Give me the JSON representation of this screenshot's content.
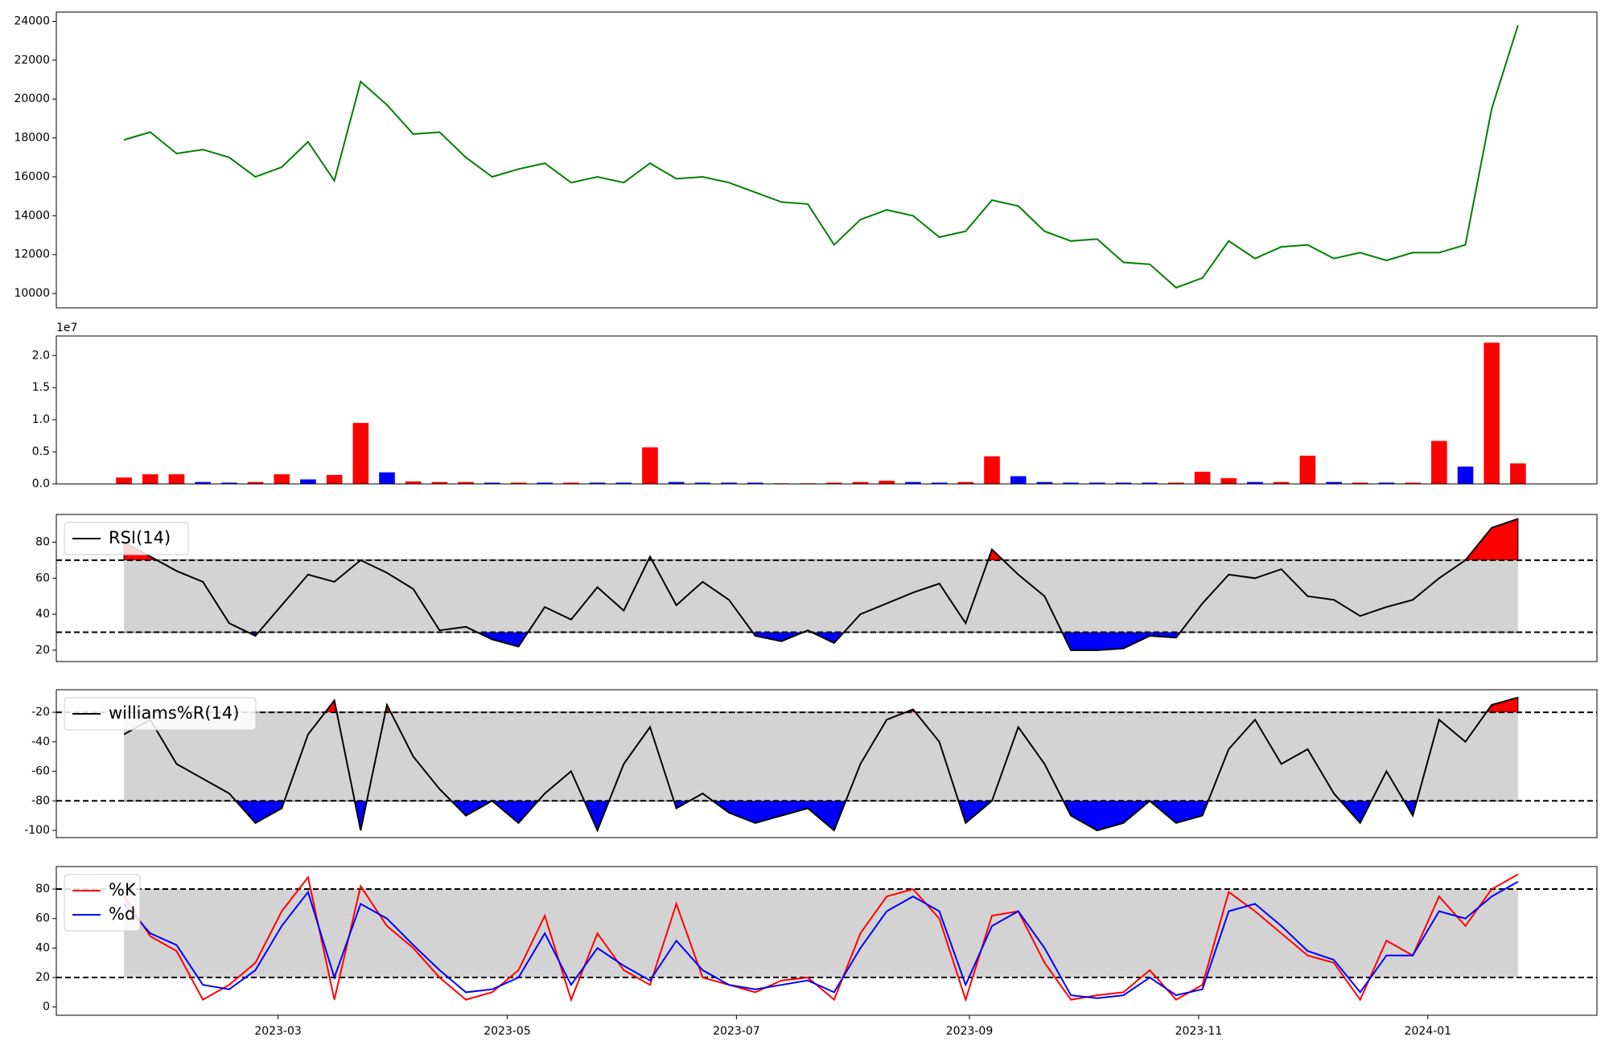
{
  "chart_data": [
    {
      "type": "line",
      "x": [
        "2023-01-19",
        "2023-01-26",
        "2023-02-02",
        "2023-02-09",
        "2023-02-16",
        "2023-02-23",
        "2023-03-02",
        "2023-03-09",
        "2023-03-16",
        "2023-03-23",
        "2023-03-30",
        "2023-04-06",
        "2023-04-13",
        "2023-04-20",
        "2023-04-27",
        "2023-05-04",
        "2023-05-11",
        "2023-05-18",
        "2023-05-25",
        "2023-06-01",
        "2023-06-08",
        "2023-06-15",
        "2023-06-22",
        "2023-06-29",
        "2023-07-06",
        "2023-07-13",
        "2023-07-20",
        "2023-07-27",
        "2023-08-03",
        "2023-08-10",
        "2023-08-17",
        "2023-08-24",
        "2023-08-31",
        "2023-09-07",
        "2023-09-14",
        "2023-09-21",
        "2023-09-28",
        "2023-10-05",
        "2023-10-12",
        "2023-10-19",
        "2023-10-26",
        "2023-11-02",
        "2023-11-09",
        "2023-11-16",
        "2023-11-23",
        "2023-11-30",
        "2023-12-07",
        "2023-12-14",
        "2023-12-21",
        "2023-12-28",
        "2024-01-04",
        "2024-01-11",
        "2024-01-18",
        "2024-01-25"
      ],
      "series": [
        {
          "color": "#008000",
          "values": [
            17900,
            18300,
            17200,
            17400,
            17000,
            16000,
            16500,
            17800,
            15800,
            20900,
            19700,
            18200,
            18300,
            17000,
            16000,
            16400,
            16700,
            15700,
            16000,
            15700,
            16700,
            15900,
            16000,
            15700,
            15200,
            14700,
            14600,
            12500,
            13800,
            14300,
            14000,
            12900,
            13200,
            14800,
            14500,
            13200,
            12700,
            12800,
            11600,
            11500,
            10300,
            10800,
            12700,
            11800,
            12400,
            12500,
            11800,
            12100,
            11700,
            12100,
            12100,
            12500,
            19500,
            23800
          ]
        }
      ],
      "xlim": [
        "2023-01-01",
        "2024-02-15"
      ],
      "ylim": [
        9260,
        24475
      ],
      "yticks": [
        10000,
        12000,
        14000,
        16000,
        18000,
        20000,
        22000,
        24000
      ]
    },
    {
      "type": "bar",
      "x": [
        "2023-01-19",
        "2023-01-26",
        "2023-02-02",
        "2023-02-09",
        "2023-02-16",
        "2023-02-23",
        "2023-03-02",
        "2023-03-09",
        "2023-03-16",
        "2023-03-23",
        "2023-03-30",
        "2023-04-06",
        "2023-04-13",
        "2023-04-20",
        "2023-04-27",
        "2023-05-04",
        "2023-05-11",
        "2023-05-18",
        "2023-05-25",
        "2023-06-01",
        "2023-06-08",
        "2023-06-15",
        "2023-06-22",
        "2023-06-29",
        "2023-07-06",
        "2023-07-13",
        "2023-07-20",
        "2023-07-27",
        "2023-08-03",
        "2023-08-10",
        "2023-08-17",
        "2023-08-24",
        "2023-08-31",
        "2023-09-07",
        "2023-09-14",
        "2023-09-21",
        "2023-09-28",
        "2023-10-05",
        "2023-10-12",
        "2023-10-19",
        "2023-10-26",
        "2023-11-02",
        "2023-11-09",
        "2023-11-16",
        "2023-11-23",
        "2023-11-30",
        "2023-12-07",
        "2023-12-14",
        "2023-12-21",
        "2023-12-28",
        "2024-01-04",
        "2024-01-11",
        "2024-01-18",
        "2024-01-25"
      ],
      "values": [
        1000000,
        1500000,
        1500000,
        300000,
        200000,
        300000,
        1500000,
        700000,
        1400000,
        9500000,
        1800000,
        400000,
        300000,
        300000,
        200000,
        200000,
        200000,
        200000,
        200000,
        200000,
        5700000,
        300000,
        200000,
        200000,
        200000,
        100000,
        100000,
        200000,
        300000,
        500000,
        300000,
        200000,
        300000,
        4300000,
        1200000,
        300000,
        200000,
        200000,
        200000,
        200000,
        200000,
        1900000,
        900000,
        300000,
        300000,
        4400000,
        300000,
        200000,
        200000,
        200000,
        6700000,
        2700000,
        22000000,
        3200000
      ],
      "colors": [
        "red",
        "red",
        "red",
        "blue",
        "blue",
        "red",
        "red",
        "blue",
        "red",
        "red",
        "blue",
        "red",
        "red",
        "red",
        "blue",
        "red",
        "blue",
        "red",
        "blue",
        "blue",
        "red",
        "blue",
        "blue",
        "blue",
        "blue",
        "red",
        "red",
        "red",
        "red",
        "red",
        "blue",
        "blue",
        "red",
        "red",
        "blue",
        "blue",
        "blue",
        "blue",
        "blue",
        "blue",
        "red",
        "red",
        "red",
        "blue",
        "red",
        "red",
        "blue",
        "red",
        "blue",
        "red",
        "red",
        "blue",
        "red",
        "red"
      ],
      "offset_label": "1e7",
      "xlim": [
        "2023-01-01",
        "2024-02-15"
      ],
      "ylim": [
        0,
        23040000
      ],
      "yticks": [
        {
          "value": 0,
          "label": "0.0"
        },
        {
          "value": 5000000,
          "label": "0.5"
        },
        {
          "value": 10000000,
          "label": "1.0"
        },
        {
          "value": 15000000,
          "label": "1.5"
        },
        {
          "value": 20000000,
          "label": "2.0"
        }
      ]
    },
    {
      "type": "oscillator",
      "x": [
        "2023-01-19",
        "2023-01-26",
        "2023-02-02",
        "2023-02-09",
        "2023-02-16",
        "2023-02-23",
        "2023-03-02",
        "2023-03-09",
        "2023-03-16",
        "2023-03-23",
        "2023-03-30",
        "2023-04-06",
        "2023-04-13",
        "2023-04-20",
        "2023-04-27",
        "2023-05-04",
        "2023-05-11",
        "2023-05-18",
        "2023-05-25",
        "2023-06-01",
        "2023-06-08",
        "2023-06-15",
        "2023-06-22",
        "2023-06-29",
        "2023-07-06",
        "2023-07-13",
        "2023-07-20",
        "2023-07-27",
        "2023-08-03",
        "2023-08-10",
        "2023-08-17",
        "2023-08-24",
        "2023-08-31",
        "2023-09-07",
        "2023-09-14",
        "2023-09-21",
        "2023-09-28",
        "2023-10-05",
        "2023-10-12",
        "2023-10-19",
        "2023-10-26",
        "2023-11-02",
        "2023-11-09",
        "2023-11-16",
        "2023-11-23",
        "2023-11-30",
        "2023-12-07",
        "2023-12-14",
        "2023-12-21",
        "2023-12-28",
        "2024-01-04",
        "2024-01-11",
        "2024-01-18",
        "2024-01-25"
      ],
      "series": [
        {
          "name": "RSI(14)",
          "color": "#000000",
          "values": [
            80,
            72,
            64,
            58,
            35,
            28,
            45,
            62,
            58,
            70,
            63,
            54,
            31,
            33,
            26,
            22,
            44,
            37,
            55,
            42,
            72,
            45,
            58,
            48,
            28,
            25,
            31,
            24,
            40,
            46,
            52,
            57,
            35,
            76,
            62,
            50,
            20,
            20,
            21,
            28,
            27,
            46,
            62,
            60,
            65,
            50,
            48,
            39,
            44,
            48,
            60,
            70,
            88,
            93
          ]
        }
      ],
      "upper": 70,
      "lower": 30,
      "fill_extremes": true,
      "over_color": "red",
      "under_color": "blue",
      "band_color": "#d3d3d3",
      "xlim": [
        "2023-01-01",
        "2024-02-15"
      ],
      "ylim": [
        13.7,
        95.4
      ],
      "yticks": [
        20,
        40,
        60,
        80
      ]
    },
    {
      "type": "oscillator",
      "x": [
        "2023-01-19",
        "2023-01-26",
        "2023-02-02",
        "2023-02-09",
        "2023-02-16",
        "2023-02-23",
        "2023-03-02",
        "2023-03-09",
        "2023-03-16",
        "2023-03-23",
        "2023-03-30",
        "2023-04-06",
        "2023-04-13",
        "2023-04-20",
        "2023-04-27",
        "2023-05-04",
        "2023-05-11",
        "2023-05-18",
        "2023-05-25",
        "2023-06-01",
        "2023-06-08",
        "2023-06-15",
        "2023-06-22",
        "2023-06-29",
        "2023-07-06",
        "2023-07-13",
        "2023-07-20",
        "2023-07-27",
        "2023-08-03",
        "2023-08-10",
        "2023-08-17",
        "2023-08-24",
        "2023-08-31",
        "2023-09-07",
        "2023-09-14",
        "2023-09-21",
        "2023-09-28",
        "2023-10-05",
        "2023-10-12",
        "2023-10-19",
        "2023-10-26",
        "2023-11-02",
        "2023-11-09",
        "2023-11-16",
        "2023-11-23",
        "2023-11-30",
        "2023-12-07",
        "2023-12-14",
        "2023-12-21",
        "2023-12-28",
        "2024-01-04",
        "2024-01-11",
        "2024-01-18",
        "2024-01-25"
      ],
      "series": [
        {
          "name": "williams%R(14)",
          "color": "#000000",
          "values": [
            -35,
            -25,
            -55,
            -65,
            -75,
            -95,
            -85,
            -35,
            -12,
            -100,
            -15,
            -50,
            -72,
            -90,
            -80,
            -95,
            -75,
            -60,
            -100,
            -55,
            -30,
            -85,
            -75,
            -88,
            -95,
            -90,
            -85,
            -100,
            -55,
            -25,
            -18,
            -40,
            -95,
            -80,
            -30,
            -55,
            -90,
            -100,
            -95,
            -80,
            -95,
            -90,
            -45,
            -25,
            -55,
            -45,
            -75,
            -95,
            -60,
            -90,
            -25,
            -40,
            -15,
            -10
          ]
        }
      ],
      "upper": -20,
      "lower": -80,
      "fill_extremes": true,
      "over_color": "red",
      "under_color": "blue",
      "band_color": "#d3d3d3",
      "xlim": [
        "2023-01-01",
        "2024-02-15"
      ],
      "ylim": [
        -104.9,
        -4.7
      ],
      "yticks": [
        -100,
        -80,
        -60,
        -40,
        -20
      ]
    },
    {
      "type": "oscillator",
      "x": [
        "2023-01-19",
        "2023-01-26",
        "2023-02-02",
        "2023-02-09",
        "2023-02-16",
        "2023-02-23",
        "2023-03-02",
        "2023-03-09",
        "2023-03-16",
        "2023-03-23",
        "2023-03-30",
        "2023-04-06",
        "2023-04-13",
        "2023-04-20",
        "2023-04-27",
        "2023-05-04",
        "2023-05-11",
        "2023-05-18",
        "2023-05-25",
        "2023-06-01",
        "2023-06-08",
        "2023-06-15",
        "2023-06-22",
        "2023-06-29",
        "2023-07-06",
        "2023-07-13",
        "2023-07-20",
        "2023-07-27",
        "2023-08-03",
        "2023-08-10",
        "2023-08-17",
        "2023-08-24",
        "2023-08-31",
        "2023-09-07",
        "2023-09-14",
        "2023-09-21",
        "2023-09-28",
        "2023-10-05",
        "2023-10-12",
        "2023-10-19",
        "2023-10-26",
        "2023-11-02",
        "2023-11-09",
        "2023-11-16",
        "2023-11-23",
        "2023-11-30",
        "2023-12-07",
        "2023-12-14",
        "2023-12-21",
        "2023-12-28",
        "2024-01-04",
        "2024-01-11",
        "2024-01-18",
        "2024-01-25"
      ],
      "series": [
        {
          "name": "%K",
          "color": "red",
          "values": [
            75,
            48,
            38,
            5,
            15,
            30,
            65,
            88,
            5,
            82,
            55,
            40,
            20,
            5,
            10,
            25,
            62,
            5,
            50,
            25,
            15,
            70,
            20,
            15,
            10,
            18,
            20,
            5,
            50,
            75,
            80,
            60,
            5,
            62,
            65,
            30,
            5,
            8,
            10,
            25,
            5,
            15,
            78,
            65,
            50,
            35,
            30,
            5,
            45,
            35,
            75,
            55,
            80,
            90
          ]
        },
        {
          "name": "%d",
          "color": "blue",
          "values": [
            70,
            50,
            42,
            15,
            12,
            25,
            55,
            78,
            20,
            70,
            60,
            42,
            25,
            10,
            12,
            20,
            50,
            15,
            40,
            28,
            18,
            45,
            25,
            15,
            12,
            15,
            18,
            10,
            40,
            65,
            75,
            65,
            15,
            55,
            65,
            40,
            8,
            6,
            8,
            20,
            8,
            12,
            65,
            70,
            55,
            38,
            32,
            10,
            35,
            35,
            65,
            60,
            75,
            85
          ]
        }
      ],
      "upper": 80,
      "lower": 20,
      "fill_extremes": false,
      "band_color": "#d3d3d3",
      "xlim": [
        "2023-01-01",
        "2024-02-15"
      ],
      "ylim": [
        -5.6,
        95.3
      ],
      "yticks": [
        0,
        20,
        40,
        60,
        80
      ],
      "xticks": [
        {
          "value": "2023-03-01",
          "label": "2023-03"
        },
        {
          "value": "2023-05-01",
          "label": "2023-05"
        },
        {
          "value": "2023-07-01",
          "label": "2023-07"
        },
        {
          "value": "2023-09-01",
          "label": "2023-09"
        },
        {
          "value": "2023-11-01",
          "label": "2023-11"
        },
        {
          "value": "2024-01-01",
          "label": "2024-01"
        }
      ]
    }
  ]
}
